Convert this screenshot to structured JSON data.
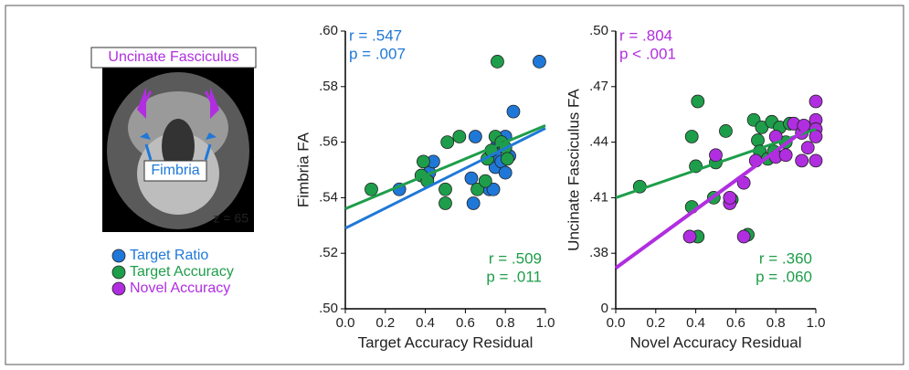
{
  "brain_figure": {
    "upper_label": "Uncinate Fasciculus",
    "lower_label": "Fimbria",
    "slice_label": "z = 65"
  },
  "chart_data": [
    {
      "type": "scatter",
      "xlabel": "Target Accuracy Residual",
      "ylabel": "Fimbria FA",
      "xlim": [
        0,
        1
      ],
      "xticks": [
        {
          "value": 0,
          "label": "0.0"
        },
        0.2,
        0.4,
        0.6,
        0.8,
        {
          "value": 1,
          "label": "1.0"
        }
      ],
      "ylim": [
        0.5,
        0.6
      ],
      "yticks": [
        {
          "value": 0.5,
          "label": ".50"
        },
        {
          "value": 0.52,
          "label": ".52"
        },
        {
          "value": 0.54,
          "label": ".54"
        },
        {
          "value": 0.56,
          "label": ".56"
        },
        {
          "value": 0.58,
          "label": ".58"
        },
        {
          "value": 0.6,
          "label": ".60"
        }
      ],
      "series": [
        {
          "name": "Target Ratio",
          "color": "#1f78d8",
          "x": [
            0.27,
            0.41,
            0.42,
            0.44,
            0.63,
            0.64,
            0.65,
            0.72,
            0.74,
            0.75,
            0.75,
            0.76,
            0.78,
            0.8,
            0.8,
            0.82,
            0.84,
            0.97
          ],
          "values": [
            0.543,
            0.547,
            0.549,
            0.553,
            0.547,
            0.538,
            0.562,
            0.543,
            0.543,
            0.551,
            0.555,
            0.559,
            0.553,
            0.549,
            0.562,
            0.555,
            0.571,
            0.589
          ],
          "fit_x": [
            0,
            1
          ],
          "fit_y": [
            0.529,
            0.565
          ]
        },
        {
          "name": "Target Accuracy",
          "color": "#1e9e4a",
          "x": [
            0.13,
            0.38,
            0.39,
            0.41,
            0.5,
            0.5,
            0.51,
            0.57,
            0.66,
            0.7,
            0.71,
            0.73,
            0.75,
            0.76,
            0.78,
            0.8,
            0.81
          ],
          "values": [
            0.543,
            0.548,
            0.553,
            0.546,
            0.543,
            0.538,
            0.56,
            0.562,
            0.543,
            0.546,
            0.554,
            0.557,
            0.562,
            0.589,
            0.56,
            0.558,
            0.554
          ],
          "fit_x": [
            0,
            1
          ],
          "fit_y": [
            0.536,
            0.566
          ]
        }
      ],
      "annotations": [
        {
          "text": "r = .547",
          "color": "#1f78d8"
        },
        {
          "text": "p = .007",
          "color": "#1f78d8"
        },
        {
          "text": "r = .509",
          "color": "#1e9e4a"
        },
        {
          "text": "p = .011",
          "color": "#1e9e4a"
        }
      ]
    },
    {
      "type": "scatter",
      "xlabel": "Novel Accuracy Residual",
      "ylabel": "Uncinate Fasciculus FA",
      "xlim": [
        0,
        1
      ],
      "xticks": [
        {
          "value": 0,
          "label": "0.0"
        },
        0.2,
        0.4,
        0.6,
        0.8,
        {
          "value": 1,
          "label": "1.0"
        }
      ],
      "ylim": [
        0.35,
        0.5
      ],
      "yticks": [
        {
          "value": 0.35,
          "label": "0"
        },
        {
          "value": 0.38,
          "label": ".38"
        },
        {
          "value": 0.41,
          "label": ".41"
        },
        {
          "value": 0.44,
          "label": ".44"
        },
        {
          "value": 0.47,
          "label": ".47"
        },
        {
          "value": 0.5,
          "label": ".50"
        }
      ],
      "series": [
        {
          "name": "Target Accuracy",
          "color": "#1e9e4a",
          "x": [
            0.12,
            0.38,
            0.38,
            0.4,
            0.41,
            0.41,
            0.49,
            0.5,
            0.55,
            0.58,
            0.66,
            0.69,
            0.71,
            0.72,
            0.73,
            0.76,
            0.78,
            0.79,
            0.82,
            0.85,
            0.87
          ],
          "values": [
            0.416,
            0.405,
            0.443,
            0.427,
            0.462,
            0.389,
            0.41,
            0.429,
            0.446,
            0.409,
            0.39,
            0.452,
            0.441,
            0.435,
            0.448,
            0.431,
            0.451,
            0.435,
            0.448,
            0.44,
            0.45
          ],
          "fit_x": [
            0,
            1
          ],
          "fit_y": [
            0.41,
            0.447
          ]
        },
        {
          "name": "Novel Accuracy",
          "color": "#b02ee0",
          "x": [
            0.37,
            0.5,
            0.57,
            0.57,
            0.64,
            0.64,
            0.7,
            0.8,
            0.8,
            0.85,
            0.89,
            0.93,
            0.93,
            0.94,
            1.0,
            1.0,
            1.0,
            1.0,
            1.0,
            0.96
          ],
          "values": [
            0.389,
            0.433,
            0.407,
            0.41,
            0.418,
            0.389,
            0.43,
            0.432,
            0.443,
            0.433,
            0.45,
            0.43,
            0.445,
            0.449,
            0.462,
            0.452,
            0.447,
            0.443,
            0.43,
            0.437
          ],
          "fit_x": [
            0,
            0.95
          ],
          "fit_y": [
            0.372,
            0.447
          ]
        }
      ],
      "annotations": [
        {
          "text": "r = .804",
          "color": "#b02ee0"
        },
        {
          "text": "p < .001",
          "color": "#b02ee0"
        },
        {
          "text": "r = .360",
          "color": "#1e9e4a"
        },
        {
          "text": "p = .060",
          "color": "#1e9e4a"
        }
      ]
    }
  ]
}
